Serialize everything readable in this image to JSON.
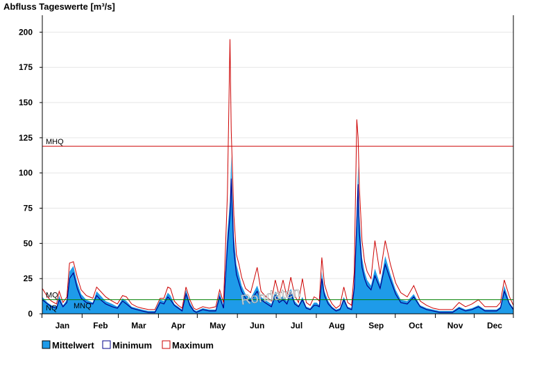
{
  "chart_data": {
    "type": "area",
    "title": "Abfluss Tageswerte [m³/s]",
    "ylim": [
      0,
      212
    ],
    "yticks": [
      0,
      25,
      50,
      75,
      100,
      125,
      150,
      175,
      200
    ],
    "months": [
      "Jan",
      "Feb",
      "Mar",
      "Apr",
      "May",
      "Jun",
      "Jul",
      "Aug",
      "Sep",
      "Oct",
      "Nov",
      "Dec"
    ],
    "grid": true,
    "watermark": "Rohdaten",
    "reference_lines": [
      {
        "label": "MHQ",
        "value": 119,
        "color": "#cc0000"
      },
      {
        "label": "MQ",
        "value": 10,
        "color": "#008000"
      },
      {
        "label": "NQ",
        "value": 2
      },
      {
        "label": "MNQ",
        "value": 2.5
      }
    ],
    "series_meta": [
      {
        "name": "Mittelwert",
        "color": "#1e9be9"
      },
      {
        "name": "Minimum",
        "color": "#00008b"
      },
      {
        "name": "Maximum",
        "color": "#cc0000"
      }
    ],
    "x": [
      1,
      5,
      8,
      12,
      14,
      17,
      20,
      22,
      25,
      28,
      31,
      35,
      40,
      43,
      46,
      50,
      55,
      59,
      63,
      66,
      70,
      74,
      78,
      83,
      88,
      92,
      95,
      98,
      100,
      103,
      106,
      109,
      112,
      115,
      118,
      120,
      125,
      130,
      135,
      138,
      141,
      144,
      146,
      147,
      149,
      151,
      153,
      155,
      158,
      162,
      167,
      170,
      173,
      178,
      181,
      184,
      187,
      190,
      193,
      196,
      199,
      202,
      205,
      208,
      211,
      213,
      215,
      217,
      219,
      222,
      225,
      228,
      231,
      234,
      237,
      240,
      242,
      244,
      245,
      246,
      248,
      250,
      252,
      255,
      258,
      262,
      266,
      270,
      274,
      278,
      283,
      288,
      293,
      298,
      303,
      308,
      313,
      318,
      323,
      328,
      333,
      338,
      343,
      348,
      352,
      355,
      358,
      362,
      365
    ],
    "series": [
      {
        "name": "Mittelwert",
        "values": [
          12,
          8,
          6,
          5,
          13,
          6,
          10,
          30,
          34,
          22,
          14,
          10,
          8,
          16,
          13,
          9,
          7,
          5,
          11,
          9,
          5,
          4,
          3,
          2,
          2,
          10,
          9,
          15,
          13,
          7,
          5,
          3,
          17,
          8,
          3,
          2,
          4,
          3,
          3,
          15,
          6,
          58,
          80,
          112,
          55,
          35,
          28,
          20,
          14,
          11,
          20,
          12,
          10,
          7,
          16,
          10,
          13,
          9,
          18,
          9,
          6,
          12,
          5,
          4,
          8,
          8,
          6,
          30,
          16,
          9,
          5,
          3,
          4,
          12,
          5,
          4,
          22,
          75,
          105,
          70,
          40,
          30,
          24,
          20,
          32,
          21,
          41,
          28,
          17,
          10,
          9,
          14,
          6,
          4,
          3,
          2,
          2,
          2,
          5,
          3,
          4,
          6,
          3,
          3,
          3,
          5,
          20,
          8,
          4
        ]
      },
      {
        "name": "Minimum",
        "values": [
          10,
          7,
          5,
          4,
          10,
          5,
          8,
          25,
          29,
          18,
          11,
          8,
          7,
          13,
          10,
          7,
          5,
          4,
          9,
          7,
          4,
          3,
          2,
          1,
          1,
          8,
          7,
          12,
          10,
          6,
          4,
          2,
          14,
          6,
          2,
          1,
          3,
          2,
          2,
          12,
          4,
          48,
          70,
          96,
          45,
          28,
          22,
          16,
          11,
          9,
          16,
          10,
          8,
          5,
          13,
          8,
          10,
          7,
          15,
          7,
          5,
          10,
          4,
          3,
          6,
          6,
          5,
          25,
          13,
          7,
          4,
          2,
          3,
          10,
          4,
          3,
          18,
          65,
          92,
          58,
          33,
          25,
          20,
          17,
          27,
          18,
          35,
          24,
          14,
          8,
          7,
          12,
          5,
          3,
          2,
          1,
          1,
          1,
          4,
          2,
          3,
          5,
          2,
          2,
          2,
          4,
          16,
          7,
          3
        ]
      },
      {
        "name": "Maximum",
        "values": [
          18,
          12,
          9,
          7,
          16,
          8,
          12,
          36,
          37,
          26,
          17,
          13,
          11,
          19,
          16,
          12,
          9,
          7,
          13,
          12,
          7,
          5,
          4,
          3,
          3,
          11,
          11,
          19,
          18,
          9,
          6,
          4,
          19,
          10,
          4,
          3,
          5,
          4,
          5,
          17,
          8,
          85,
          195,
          130,
          70,
          42,
          35,
          26,
          18,
          15,
          33,
          16,
          13,
          9,
          24,
          13,
          24,
          12,
          26,
          13,
          8,
          25,
          8,
          6,
          12,
          11,
          9,
          40,
          21,
          12,
          7,
          4,
          6,
          19,
          8,
          6,
          30,
          138,
          125,
          90,
          52,
          37,
          30,
          25,
          52,
          28,
          52,
          35,
          22,
          15,
          12,
          20,
          9,
          6,
          4,
          3,
          3,
          3,
          8,
          5,
          7,
          10,
          5,
          5,
          5,
          8,
          24,
          12,
          6
        ]
      }
    ]
  },
  "legend": {
    "items": [
      {
        "label": "Mittelwert",
        "color": "#1e9be9"
      },
      {
        "label": "Minimum",
        "color": "#00008b"
      },
      {
        "label": "Maximum",
        "color": "#cc0000"
      }
    ]
  }
}
